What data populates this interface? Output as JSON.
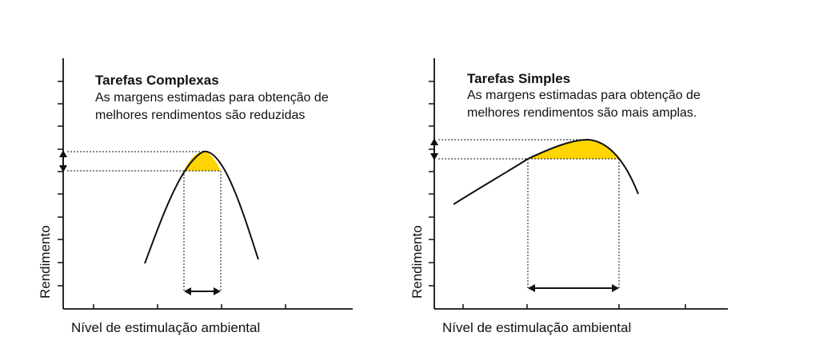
{
  "colors": {
    "line": "#111111",
    "highlight": "#ffd400",
    "background": "#ffffff"
  },
  "panels": [
    {
      "id": "complex",
      "title": "Tarefas Complexas",
      "description_lines": [
        "As margens estimadas para obtenção de",
        "melhores rendimentos são reduzidas"
      ],
      "xlabel": "Nível de estimulação ambiental",
      "ylabel": "Rendimento"
    },
    {
      "id": "simple",
      "title": "Tarefas Simples",
      "description_lines": [
        "As margens estimadas para obtenção de",
        "melhores rendimentos são mais amplas."
      ],
      "xlabel": "Nível de estimulação ambiental",
      "ylabel": "Rendimento"
    }
  ]
}
